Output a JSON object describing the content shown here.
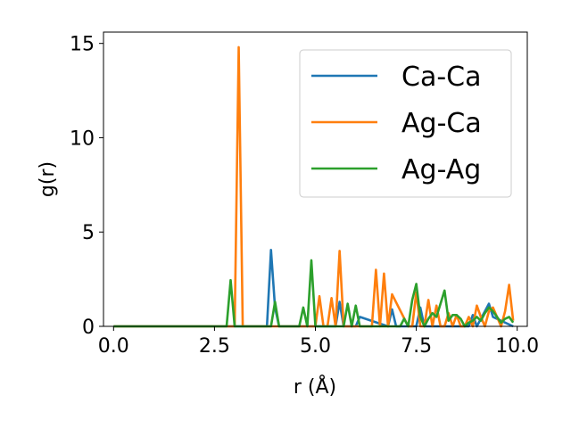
{
  "chart_data": {
    "type": "line",
    "title": "",
    "xlabel": "r (Å)",
    "ylabel": "g(r)",
    "xlim": [
      -0.25,
      10.25
    ],
    "ylim": [
      0,
      15.6
    ],
    "xticks": [
      0.0,
      2.5,
      5.0,
      7.5,
      10.0
    ],
    "xtick_labels": [
      "0.0",
      "2.5",
      "5.0",
      "7.5",
      "10.0"
    ],
    "yticks": [
      0,
      5,
      10,
      15
    ],
    "ytick_labels": [
      "0",
      "5",
      "10",
      "15"
    ],
    "grid": false,
    "legend_position": "top-right",
    "series": [
      {
        "name": "Ca-Ca",
        "color": "#1f77b4",
        "x": [
          0,
          3.8,
          3.9,
          4.0,
          4.1,
          4.2,
          5.5,
          5.6,
          5.7,
          6.0,
          6.1,
          6.8,
          6.9,
          7.0,
          7.5,
          7.6,
          7.7,
          8.8,
          8.9,
          9.0,
          9.2,
          9.3,
          9.4,
          9.9
        ],
        "y": [
          0,
          0,
          4.05,
          1.0,
          0,
          0,
          0,
          1.3,
          0,
          0,
          0.5,
          0,
          0.9,
          0,
          0,
          1.0,
          0,
          0,
          0.6,
          0,
          0.8,
          1.2,
          0.5,
          0
        ]
      },
      {
        "name": "Ag-Ca",
        "color": "#ff7f0e",
        "x": [
          0,
          2.9,
          3.0,
          3.1,
          3.2,
          3.3,
          4.9,
          5.0,
          5.1,
          5.2,
          5.3,
          5.4,
          5.5,
          5.6,
          5.7,
          6.3,
          6.4,
          6.5,
          6.6,
          6.7,
          6.8,
          6.9,
          7.3,
          7.4,
          7.5,
          7.6,
          7.7,
          7.8,
          7.9,
          8.0,
          8.1,
          8.2,
          8.3,
          8.4,
          8.5,
          8.6,
          8.7,
          8.8,
          8.9,
          9.0,
          9.1,
          9.2,
          9.3,
          9.4,
          9.5,
          9.6,
          9.7,
          9.8,
          9.9
        ],
        "y": [
          0,
          0,
          0,
          14.8,
          0,
          0,
          0,
          0,
          1.6,
          0,
          0,
          1.5,
          0,
          4.0,
          0,
          0,
          0,
          3.0,
          0,
          2.8,
          0,
          1.7,
          0,
          0,
          1.8,
          0,
          0,
          1.4,
          0,
          1.1,
          0,
          0,
          0.7,
          0,
          0.6,
          0,
          0,
          0.5,
          0,
          1.1,
          0.5,
          0,
          0.8,
          1.0,
          0.5,
          0,
          0.8,
          2.2,
          0.3
        ]
      },
      {
        "name": "Ag-Ag",
        "color": "#2ca02c",
        "x": [
          0,
          2.8,
          2.9,
          3.0,
          3.1,
          3.9,
          4.0,
          4.1,
          4.6,
          4.7,
          4.8,
          4.9,
          5.0,
          5.7,
          5.8,
          5.9,
          6.0,
          6.1,
          6.2,
          7.1,
          7.2,
          7.3,
          7.4,
          7.5,
          7.6,
          7.7,
          7.8,
          7.9,
          8.0,
          8.1,
          8.2,
          8.3,
          8.4,
          8.5,
          8.6,
          8.7,
          8.8,
          8.9,
          9.0,
          9.1,
          9.2,
          9.3,
          9.4,
          9.5,
          9.6,
          9.7,
          9.8,
          9.9
        ],
        "y": [
          0,
          0,
          2.45,
          0,
          0,
          0,
          1.3,
          0,
          0,
          1.0,
          0,
          3.5,
          0,
          0,
          1.2,
          0,
          1.1,
          0,
          0,
          0,
          0.4,
          0,
          1.4,
          2.25,
          0.5,
          0,
          0.4,
          0.7,
          0.5,
          1.2,
          1.9,
          0.3,
          0.6,
          0.6,
          0.4,
          0,
          0.2,
          0.3,
          0.5,
          0.3,
          0.7,
          1.0,
          0.8,
          0.5,
          0.2,
          0.4,
          0.5,
          0.2
        ]
      }
    ]
  }
}
